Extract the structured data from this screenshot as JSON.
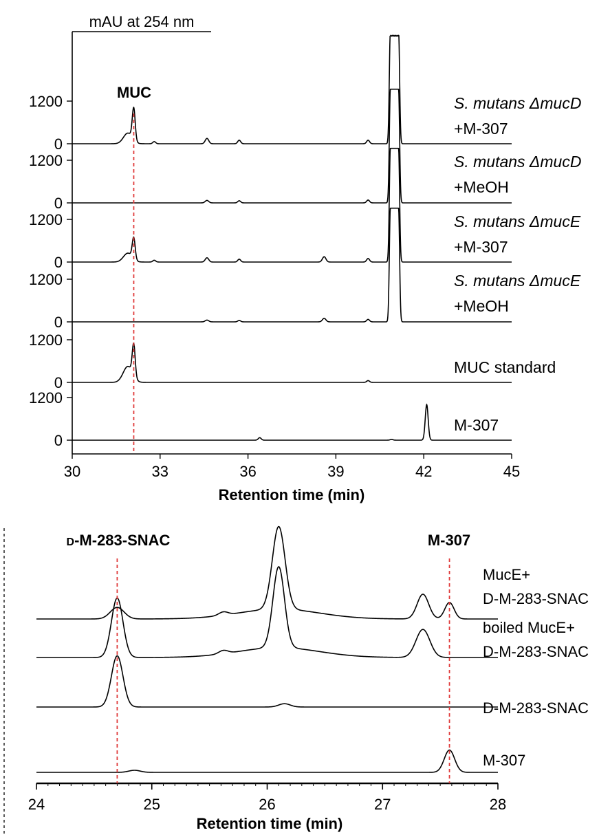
{
  "colors": {
    "trace": "#000000",
    "marker": "#e03a3a"
  },
  "chart_data": [
    {
      "type": "line",
      "ylabel": "mAU at 254 nm",
      "xlabel": "Retention time (min)",
      "xlim": [
        30,
        45
      ],
      "xticks": [
        "30",
        "33",
        "36",
        "39",
        "42",
        "45"
      ],
      "ytick_labels": [
        "0",
        "1200"
      ],
      "marker_label": "MUC",
      "marker_x": 32.1,
      "series": [
        {
          "label_lines": [
            "S. mutans ΔmucD",
            "+M-307"
          ],
          "italic_first": true,
          "peaks": [
            {
              "x": 31.9,
              "h": 300,
              "w": 0.15
            },
            {
              "x": 32.1,
              "h": 900,
              "w": 0.05
            },
            {
              "x": 32.8,
              "h": 60,
              "w": 0.05
            },
            {
              "x": 34.6,
              "h": 150,
              "w": 0.06
            },
            {
              "x": 35.7,
              "h": 100,
              "w": 0.05
            },
            {
              "x": 40.1,
              "h": 100,
              "w": 0.05
            },
            {
              "x": 41.0,
              "h": 3200,
              "w": 0.14,
              "clip": true
            }
          ]
        },
        {
          "label_lines": [
            "S. mutans ΔmucD",
            "+MeOH"
          ],
          "italic_first": true,
          "peaks": [
            {
              "x": 34.6,
              "h": 70,
              "w": 0.06
            },
            {
              "x": 35.7,
              "h": 60,
              "w": 0.05
            },
            {
              "x": 40.1,
              "h": 80,
              "w": 0.05
            },
            {
              "x": 41.0,
              "h": 3200,
              "w": 0.14,
              "clip": true
            }
          ]
        },
        {
          "label_lines": [
            "S. mutans ΔmucE",
            "+M-307"
          ],
          "italic_first": true,
          "peaks": [
            {
              "x": 31.9,
              "h": 250,
              "w": 0.15
            },
            {
              "x": 32.1,
              "h": 600,
              "w": 0.05
            },
            {
              "x": 32.8,
              "h": 50,
              "w": 0.05
            },
            {
              "x": 34.6,
              "h": 120,
              "w": 0.06
            },
            {
              "x": 35.7,
              "h": 80,
              "w": 0.05
            },
            {
              "x": 38.6,
              "h": 150,
              "w": 0.06
            },
            {
              "x": 40.1,
              "h": 100,
              "w": 0.05
            },
            {
              "x": 41.0,
              "h": 3200,
              "w": 0.14,
              "clip": true
            }
          ]
        },
        {
          "label_lines": [
            "S. mutans ΔmucE",
            "+MeOH"
          ],
          "italic_first": true,
          "peaks": [
            {
              "x": 34.6,
              "h": 50,
              "w": 0.06
            },
            {
              "x": 35.7,
              "h": 40,
              "w": 0.05
            },
            {
              "x": 38.6,
              "h": 100,
              "w": 0.06
            },
            {
              "x": 40.1,
              "h": 70,
              "w": 0.05
            },
            {
              "x": 41.0,
              "h": 3200,
              "w": 0.14,
              "clip": true
            }
          ]
        },
        {
          "label_lines": [
            "MUC standard"
          ],
          "italic_first": false,
          "peaks": [
            {
              "x": 31.9,
              "h": 450,
              "w": 0.16
            },
            {
              "x": 32.1,
              "h": 900,
              "w": 0.05
            },
            {
              "x": 40.1,
              "h": 50,
              "w": 0.05
            }
          ]
        },
        {
          "label_lines": [
            "M-307"
          ],
          "italic_first": false,
          "peaks": [
            {
              "x": 36.4,
              "h": 70,
              "w": 0.05
            },
            {
              "x": 40.9,
              "h": 20,
              "w": 0.05
            },
            {
              "x": 42.1,
              "h": 1000,
              "w": 0.05
            }
          ]
        }
      ]
    },
    {
      "type": "line",
      "xlabel": "Retention time (min)",
      "xlim": [
        24,
        28
      ],
      "xticks": [
        "24",
        "25",
        "26",
        "27",
        "28"
      ],
      "markers": [
        {
          "label_prefix": "D",
          "label_rest": "-M-283-SNAC",
          "x": 24.7
        },
        {
          "label_prefix": "",
          "label_rest": "M-307",
          "x": 27.58
        }
      ],
      "series": [
        {
          "label_lines": [
            "MucE+",
            "D-M-283-SNAC"
          ],
          "peaks": [
            {
              "x": 24.7,
              "h": 0.14,
              "w": 0.06
            },
            {
              "x": 25.62,
              "h": 0.04,
              "w": 0.04
            },
            {
              "x": 26.1,
              "h": 1.0,
              "w": 0.055
            },
            {
              "x": 26.1,
              "h": 0.12,
              "w": 0.35
            },
            {
              "x": 27.35,
              "h": 0.3,
              "w": 0.05
            },
            {
              "x": 27.58,
              "h": 0.2,
              "w": 0.04
            }
          ]
        },
        {
          "label_lines": [
            "boiled MucE+",
            "D-M-283-SNAC"
          ],
          "peaks": [
            {
              "x": 24.7,
              "h": 0.72,
              "w": 0.05
            },
            {
              "x": 25.62,
              "h": 0.04,
              "w": 0.04
            },
            {
              "x": 26.1,
              "h": 0.98,
              "w": 0.05
            },
            {
              "x": 26.1,
              "h": 0.12,
              "w": 0.35
            },
            {
              "x": 27.35,
              "h": 0.34,
              "w": 0.06
            }
          ]
        },
        {
          "label_lines": [
            "D-M-283-SNAC"
          ],
          "peaks": [
            {
              "x": 24.7,
              "h": 0.62,
              "w": 0.05
            },
            {
              "x": 26.15,
              "h": 0.04,
              "w": 0.05
            }
          ]
        },
        {
          "label_lines": [
            "M-307"
          ],
          "peaks": [
            {
              "x": 24.85,
              "h": 0.025,
              "w": 0.05
            },
            {
              "x": 27.58,
              "h": 0.27,
              "w": 0.045
            }
          ]
        }
      ]
    }
  ]
}
